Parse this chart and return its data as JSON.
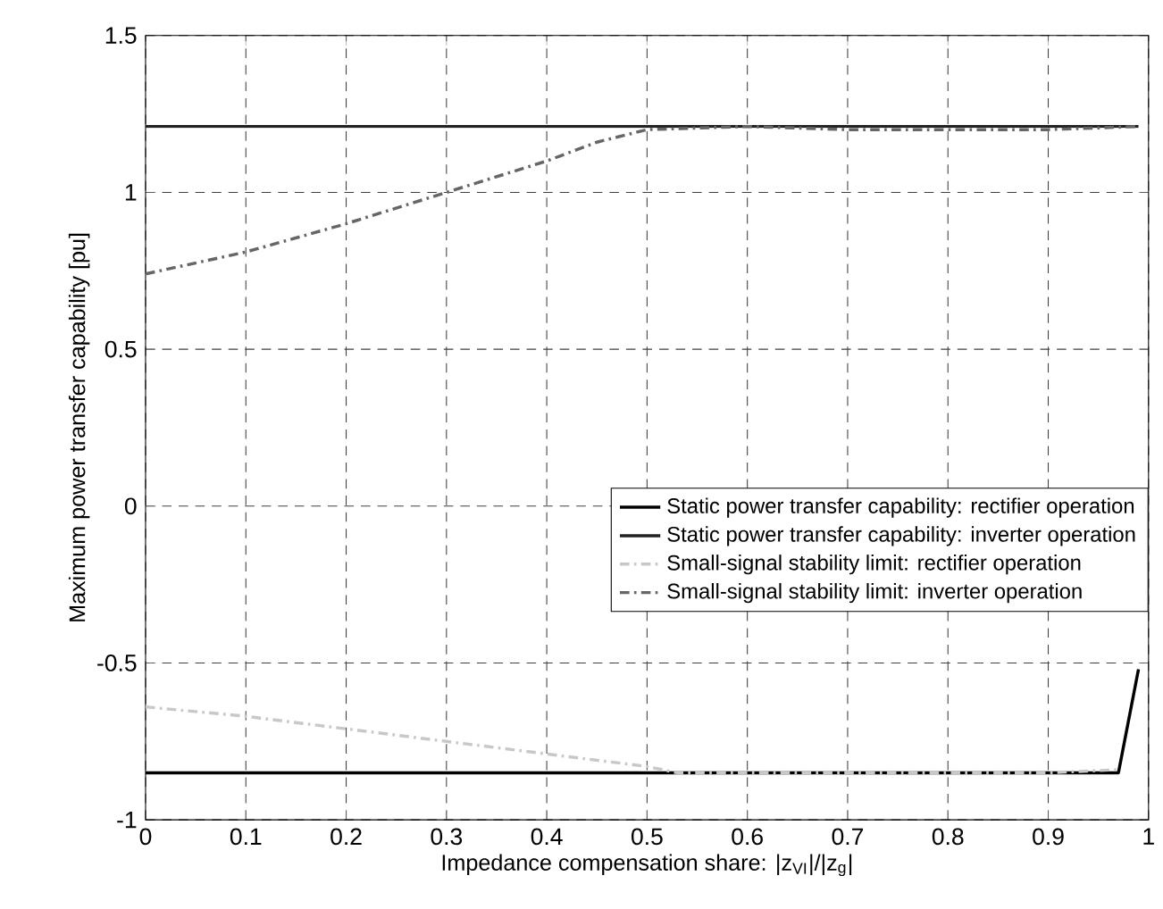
{
  "chart_data": {
    "type": "line",
    "xlabel": "Impedance compensation share: |z$_{VI}$|/|z$_{g}$|",
    "ylabel": "Maximum power transfer capability [pu]",
    "xlim": [
      0,
      1
    ],
    "ylim": [
      -1,
      1.5
    ],
    "xticks": [
      0,
      0.1,
      0.2,
      0.3,
      0.4,
      0.5,
      0.6,
      0.7,
      0.8,
      0.9,
      1
    ],
    "yticks": [
      -1,
      -0.5,
      0,
      0.5,
      1,
      1.5
    ],
    "grid": true,
    "legend": "bottom right",
    "series": [
      {
        "name": "Static power transfer capability: rectifier operation",
        "color": "#000000",
        "line_style": "solid",
        "x": [
          0,
          0.97,
          0.99
        ],
        "values": [
          -0.85,
          -0.85,
          -0.52
        ]
      },
      {
        "name": "Static power transfer capability: inverter operation",
        "color": "#222222",
        "line_style": "solid",
        "x": [
          0,
          0.99
        ],
        "values": [
          1.21,
          1.21
        ]
      },
      {
        "name": "Small-signal stability limit: rectifier operation",
        "color": "#c8c8c8",
        "line_style": "dashdot",
        "x": [
          0,
          0.1,
          0.2,
          0.3,
          0.4,
          0.5,
          0.53,
          0.6,
          0.7,
          0.8,
          0.9,
          0.97
        ],
        "values": [
          -0.64,
          -0.67,
          -0.71,
          -0.75,
          -0.79,
          -0.83,
          -0.85,
          -0.85,
          -0.85,
          -0.85,
          -0.85,
          -0.84
        ]
      },
      {
        "name": "Small-signal stability limit: inverter operation",
        "color": "#666666",
        "line_style": "dashdot",
        "x": [
          0,
          0.1,
          0.2,
          0.3,
          0.4,
          0.45,
          0.5,
          0.6,
          0.7,
          0.8,
          0.9,
          0.99
        ],
        "values": [
          0.74,
          0.81,
          0.9,
          1.0,
          1.1,
          1.16,
          1.2,
          1.21,
          1.2,
          1.2,
          1.2,
          1.21
        ]
      }
    ]
  }
}
